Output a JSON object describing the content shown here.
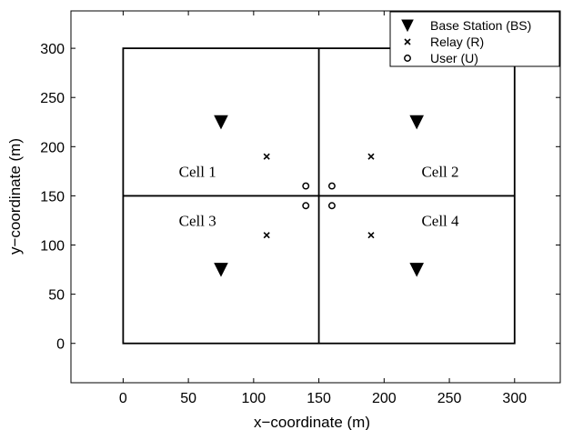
{
  "chart_data": {
    "type": "scatter",
    "title": "",
    "xlabel": "x−coordinate (m)",
    "ylabel": "y−coordinate (m)",
    "xlim": [
      -40,
      335
    ],
    "ylim": [
      -40,
      338
    ],
    "xticks": [
      0,
      50,
      100,
      150,
      200,
      250,
      300
    ],
    "yticks": [
      0,
      50,
      100,
      150,
      200,
      250,
      300
    ],
    "grid": false,
    "legend_position": "top-right",
    "series": [
      {
        "name": "Base Station (BS)",
        "marker": "triangle-down",
        "points": [
          [
            75,
            225
          ],
          [
            225,
            225
          ],
          [
            75,
            75
          ],
          [
            225,
            75
          ]
        ]
      },
      {
        "name": "Relay (R)",
        "marker": "x",
        "points": [
          [
            110,
            190
          ],
          [
            190,
            190
          ],
          [
            110,
            110
          ],
          [
            190,
            110
          ]
        ]
      },
      {
        "name": "User (U)",
        "marker": "circle-open",
        "points": [
          [
            140,
            160
          ],
          [
            160,
            160
          ],
          [
            140,
            140
          ],
          [
            160,
            140
          ]
        ]
      }
    ],
    "cell_boundaries": {
      "outer": [
        [
          0,
          0
        ],
        [
          300,
          300
        ]
      ],
      "vertical_x": 150,
      "horizontal_y": 150
    },
    "annotations": [
      {
        "text": "Cell 1",
        "x": 57,
        "y": 175
      },
      {
        "text": "Cell 2",
        "x": 243,
        "y": 175
      },
      {
        "text": "Cell 3",
        "x": 57,
        "y": 125
      },
      {
        "text": "Cell 4",
        "x": 243,
        "y": 125
      }
    ]
  }
}
